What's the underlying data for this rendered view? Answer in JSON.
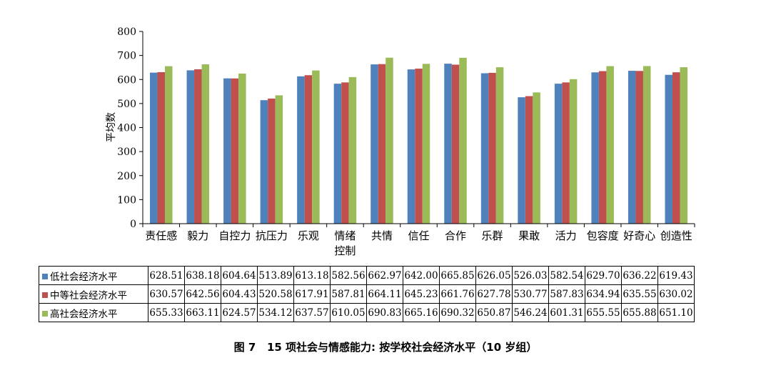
{
  "chart_data": {
    "type": "bar",
    "title": "",
    "xlabel": "",
    "ylabel": "平均数",
    "ylim": [
      0,
      800
    ],
    "yticks": [
      0,
      100,
      200,
      300,
      400,
      500,
      600,
      700,
      800
    ],
    "grid": false,
    "legend": "table-below",
    "categories": [
      "责任感",
      "毅力",
      "自控力",
      "抗压力",
      "乐观",
      "情绪控制",
      "共情",
      "信任",
      "合作",
      "乐群",
      "果敢",
      "活力",
      "包容度",
      "好奇心",
      "创造性"
    ],
    "category_lines": [
      [
        "责任感"
      ],
      [
        "毅力"
      ],
      [
        "自控力"
      ],
      [
        "抗压力"
      ],
      [
        "乐观"
      ],
      [
        "情绪",
        "控制"
      ],
      [
        "共情"
      ],
      [
        "信任"
      ],
      [
        "合作"
      ],
      [
        "乐群"
      ],
      [
        "果敢"
      ],
      [
        "活力"
      ],
      [
        "包容度"
      ],
      [
        "好奇心"
      ],
      [
        "创造性"
      ]
    ],
    "series": [
      {
        "name": "低社会经济水平",
        "color": "#4F81BD",
        "values": [
          628.51,
          638.18,
          604.64,
          513.89,
          613.18,
          582.56,
          662.97,
          642.0,
          665.85,
          626.05,
          526.03,
          582.54,
          629.7,
          636.22,
          619.43
        ],
        "labels": [
          "628.51",
          "638.18",
          "604.64",
          "513.89",
          "613.18",
          "582.56",
          "662.97",
          "642.00",
          "665.85",
          "626.05",
          "526.03",
          "582.54",
          "629.70",
          "636.22",
          "619.43"
        ]
      },
      {
        "name": "中等社会经济水平",
        "color": "#C0504D",
        "values": [
          630.57,
          642.56,
          604.43,
          520.58,
          617.91,
          587.81,
          664.11,
          645.23,
          661.76,
          627.78,
          530.77,
          587.83,
          634.94,
          635.55,
          630.02
        ],
        "labels": [
          "630.57",
          "642.56",
          "604.43",
          "520.58",
          "617.91",
          "587.81",
          "664.11",
          "645.23",
          "661.76",
          "627.78",
          "530.77",
          "587.83",
          "634.94",
          "635.55",
          "630.02"
        ]
      },
      {
        "name": "高社会经济水平",
        "color": "#9BBB59",
        "values": [
          655.33,
          663.11,
          624.57,
          534.12,
          637.57,
          610.05,
          690.83,
          665.16,
          690.32,
          650.87,
          546.24,
          601.31,
          655.55,
          655.88,
          651.1
        ],
        "labels": [
          "655.33",
          "663.11",
          "624.57",
          "534.12",
          "637.57",
          "610.05",
          "690.83",
          "665.16",
          "690.32",
          "650.87",
          "546.24",
          "601.31",
          "655.55",
          "655.88",
          "651.10"
        ]
      }
    ]
  },
  "caption": {
    "figure": "图 7",
    "text": "15 项社会与情感能力: 按学校社会经济水平（10 岁组）"
  }
}
